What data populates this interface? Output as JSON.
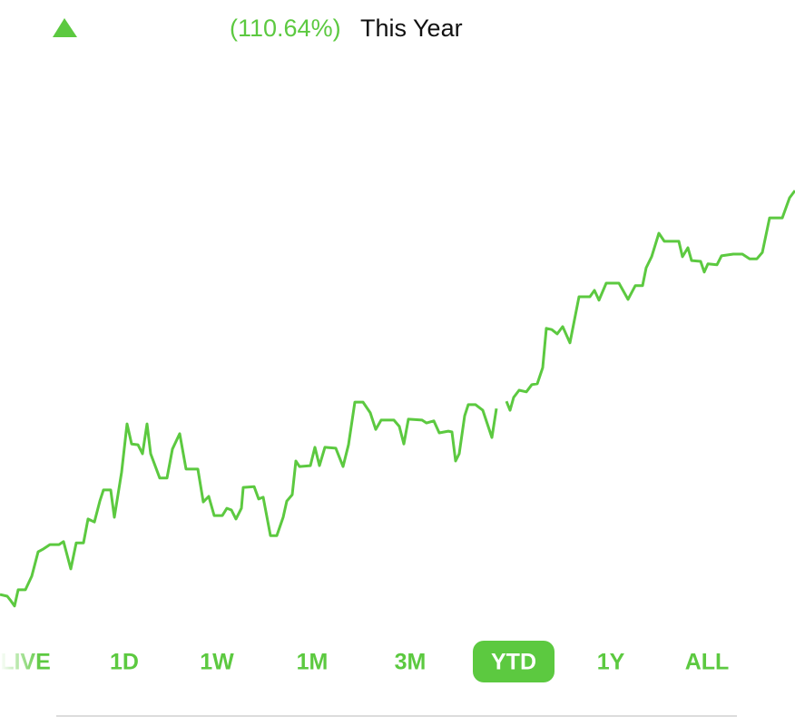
{
  "header": {
    "change": "(110.64%)",
    "period": "This Year"
  },
  "chart_data": {
    "type": "line",
    "color": "#5cc940",
    "xlim": [
      0,
      876
    ],
    "ylim": [
      0,
      100
    ],
    "x": [
      0,
      8,
      12,
      16,
      20,
      28,
      35,
      42,
      48,
      55,
      65,
      70,
      78,
      84,
      92,
      97,
      104,
      110,
      114,
      122,
      126,
      134,
      140,
      145,
      152,
      157,
      162,
      166,
      176,
      184,
      190,
      198,
      205,
      218,
      224,
      230,
      236,
      245,
      250,
      255,
      260,
      266,
      268,
      280,
      285,
      290,
      298,
      305,
      312,
      316,
      322,
      326,
      330,
      342,
      347,
      352,
      358,
      370,
      378,
      384,
      391,
      400,
      408,
      414,
      420,
      434,
      440,
      445,
      450,
      465,
      470,
      478,
      484,
      494,
      498,
      502,
      506,
      512,
      516,
      524,
      532,
      542,
      547,
      552,
      558,
      562,
      566,
      572,
      580,
      586,
      592,
      598,
      602,
      608,
      614,
      620,
      628,
      638,
      650,
      655,
      660,
      668,
      682,
      692,
      700,
      708,
      712,
      718,
      726,
      732,
      748,
      752,
      758,
      762,
      772,
      776,
      780,
      790,
      795,
      808,
      818,
      826,
      834,
      840,
      848,
      862,
      870,
      876
    ],
    "values": [
      5.3,
      4.9,
      3.8,
      2.6,
      6.4,
      6.4,
      9.6,
      15.3,
      16.0,
      17.0,
      17.0,
      17.7,
      11.3,
      17.4,
      17.4,
      23.0,
      22.3,
      27.2,
      29.8,
      29.8,
      23.4,
      34.0,
      45.3,
      40.6,
      40.4,
      38.3,
      45.3,
      38.3,
      32.6,
      32.6,
      39.4,
      43.0,
      34.7,
      34.7,
      27.0,
      28.3,
      23.8,
      23.8,
      25.5,
      25.1,
      23.0,
      25.5,
      30.4,
      30.6,
      27.7,
      28.1,
      19.1,
      19.1,
      23.4,
      27.2,
      28.7,
      36.6,
      35.3,
      35.5,
      39.8,
      35.5,
      39.8,
      39.6,
      35.3,
      40.4,
      50.4,
      50.4,
      47.9,
      44.0,
      46.2,
      46.2,
      44.7,
      40.6,
      46.4,
      46.2,
      45.5,
      46.0,
      43.2,
      43.6,
      43.4,
      36.6,
      38.3,
      47.2,
      49.8,
      49.8,
      48.5,
      42.1,
      48.9,
      null,
      50.6,
      48.5,
      51.5,
      53.2,
      52.8,
      54.5,
      54.7,
      58.5,
      67.7,
      67.4,
      66.4,
      68.1,
      64.3,
      75.1,
      75.1,
      76.6,
      74.3,
      78.3,
      78.3,
      74.5,
      77.7,
      77.7,
      81.9,
      84.5,
      90.0,
      88.1,
      88.1,
      84.5,
      86.6,
      83.6,
      83.4,
      80.9,
      82.8,
      82.6,
      84.7,
      85.1,
      85.1,
      84.0,
      84.0,
      85.5,
      93.6,
      93.6,
      98.3,
      100.0
    ]
  },
  "tabs": [
    "LIVE",
    "1D",
    "1W",
    "1M",
    "3M",
    "YTD",
    "1Y",
    "ALL"
  ],
  "selected_tab": 5
}
